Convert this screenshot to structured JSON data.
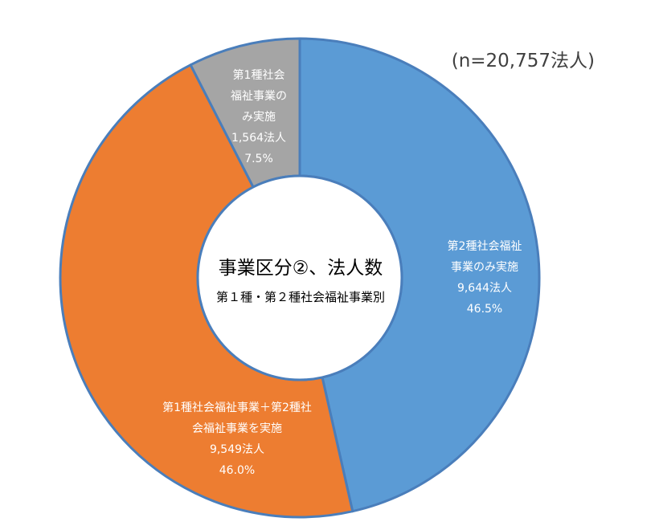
{
  "total_label": "(n=20,757法人)",
  "center": {
    "title": "事業区分②、法人数",
    "subtitle": "第１種・第２種社会福祉事業別"
  },
  "chart_data": {
    "type": "pie",
    "donut": true,
    "title": "事業区分②、法人数",
    "subtitle": "第１種・第２種社会福祉事業別",
    "total": 20757,
    "slices": [
      {
        "name_lines": [
          "第2種社会福祉",
          "事業のみ実施"
        ],
        "count": 9644,
        "count_label": "9,644法人",
        "percent": 46.5,
        "percent_label": "46.5%",
        "color": "#5B9BD5"
      },
      {
        "name_lines": [
          "第1種社会福祉事業＋第2種社",
          "会福祉事業を実施"
        ],
        "count": 9549,
        "count_label": "9,549法人",
        "percent": 46.0,
        "percent_label": "46.0%",
        "color": "#ED7D31"
      },
      {
        "name_lines": [
          "第1種社会",
          "福祉事業の",
          "み実施"
        ],
        "count": 1564,
        "count_label": "1,564法人",
        "percent": 7.5,
        "percent_label": "7.5%",
        "color": "#A5A5A5"
      }
    ],
    "edge_color": "#4A7EBB"
  }
}
